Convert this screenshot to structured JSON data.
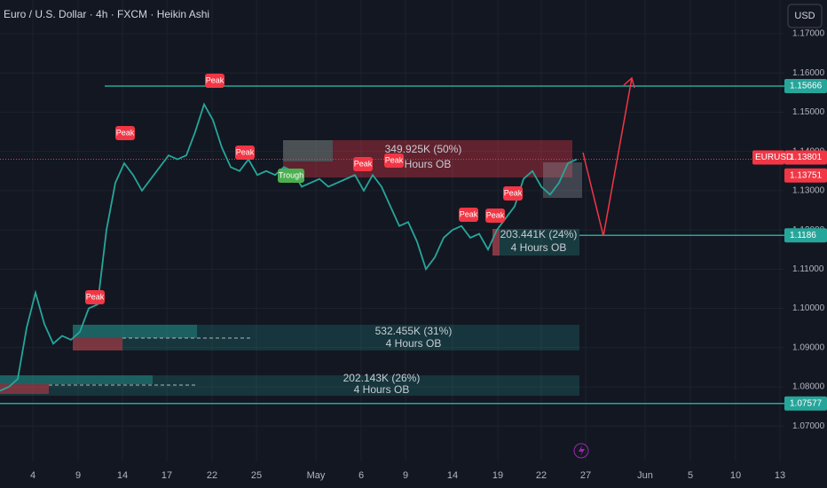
{
  "header": {
    "title": "Euro / U.S. Dollar · 4h · FXCM · Heikin Ashi",
    "currency": "USD"
  },
  "chart_data": {
    "type": "line",
    "x": [
      0,
      1,
      2,
      3,
      4,
      5,
      6,
      7,
      8,
      9,
      10,
      11,
      12,
      13,
      14,
      15,
      16,
      17,
      18,
      19,
      20,
      21,
      22,
      23,
      24,
      25,
      26,
      27,
      28,
      29,
      30,
      31,
      32,
      33,
      34,
      35,
      36,
      37,
      38,
      39,
      40,
      41,
      42,
      43,
      44,
      45,
      46,
      47,
      48,
      49,
      50,
      51,
      52,
      53,
      54,
      55,
      56,
      57,
      58,
      59,
      60,
      61,
      62,
      63,
      64,
      65
    ],
    "series": [
      {
        "name": "EURUSD",
        "color": "#26a69a",
        "values": [
          1.079,
          1.08,
          1.082,
          1.095,
          1.104,
          1.096,
          1.091,
          1.093,
          1.092,
          1.094,
          1.1,
          1.101,
          1.12,
          1.132,
          1.137,
          1.134,
          1.13,
          1.133,
          1.136,
          1.139,
          1.138,
          1.139,
          1.145,
          1.152,
          1.148,
          1.141,
          1.136,
          1.135,
          1.138,
          1.134,
          1.135,
          1.134,
          1.136,
          1.135,
          1.131,
          1.132,
          1.133,
          1.131,
          1.132,
          1.133,
          1.134,
          1.13,
          1.134,
          1.131,
          1.126,
          1.121,
          1.122,
          1.117,
          1.11,
          1.113,
          1.118,
          1.12,
          1.121,
          1.118,
          1.119,
          1.115,
          1.12,
          1.123,
          1.126,
          1.133,
          1.135,
          1.131,
          1.129,
          1.132,
          1.137,
          1.138
        ]
      }
    ],
    "xlim": [
      0,
      88.4
    ],
    "xticks": [
      {
        "value": 3.7,
        "label": "4"
      },
      {
        "value": 8.8,
        "label": "9"
      },
      {
        "value": 13.8,
        "label": "14"
      },
      {
        "value": 18.8,
        "label": "17"
      },
      {
        "value": 23.9,
        "label": "22"
      },
      {
        "value": 28.9,
        "label": "25"
      },
      {
        "value": 35.6,
        "label": "May"
      },
      {
        "value": 40.7,
        "label": "6"
      },
      {
        "value": 45.7,
        "label": "9"
      },
      {
        "value": 51.0,
        "label": "14"
      },
      {
        "value": 56.1,
        "label": "19"
      },
      {
        "value": 61.0,
        "label": "22"
      },
      {
        "value": 66.0,
        "label": "27"
      },
      {
        "value": 72.7,
        "label": "Jun"
      },
      {
        "value": 77.8,
        "label": "5"
      },
      {
        "value": 82.9,
        "label": "10"
      },
      {
        "value": 87.9,
        "label": "13"
      }
    ],
    "ylim": [
      1.061,
      1.1786
    ],
    "yticks": [
      {
        "value": 1.07,
        "label": "1.07000"
      },
      {
        "value": 1.08,
        "label": "1.08000"
      },
      {
        "value": 1.09,
        "label": "1.09000"
      },
      {
        "value": 1.1,
        "label": "1.10000"
      },
      {
        "value": 1.11,
        "label": "1.11000"
      },
      {
        "value": 1.12,
        "label": "1.12000"
      },
      {
        "value": 1.13,
        "label": "1.13000"
      },
      {
        "value": 1.14,
        "label": "1.14000"
      },
      {
        "value": 1.15,
        "label": "1.15000"
      },
      {
        "value": 1.16,
        "label": "1.16000"
      },
      {
        "value": 1.17,
        "label": "1.17000"
      }
    ],
    "grid": true,
    "price_lines": [
      {
        "value": 1.15666,
        "color": "#26a69a"
      },
      {
        "value": 1.1186,
        "color": "#26a69a"
      },
      {
        "value": 1.07577,
        "color": "#26a69a"
      }
    ],
    "last_price": {
      "symbol": "EURUSD",
      "value": 1.13801,
      "color": "#f23645"
    },
    "prev_price": {
      "value": 1.13751,
      "color": "#f23645"
    },
    "annotations": [
      "Peak",
      "Peak",
      "Peak",
      "Peak",
      "Peak",
      "Peak",
      "Peak",
      "Peak",
      "Peak",
      "Trough"
    ],
    "order_blocks": [
      {
        "volume": "349.925K (50%)",
        "label": "4 Hours OB"
      },
      {
        "volume": "532.455K (31%)",
        "label": "4 Hours OB"
      },
      {
        "volume": "202.143K (26%)",
        "label": "4 Hours OB"
      },
      {
        "volume": "203.441K (24%)",
        "label": "4 Hours OB"
      }
    ]
  }
}
